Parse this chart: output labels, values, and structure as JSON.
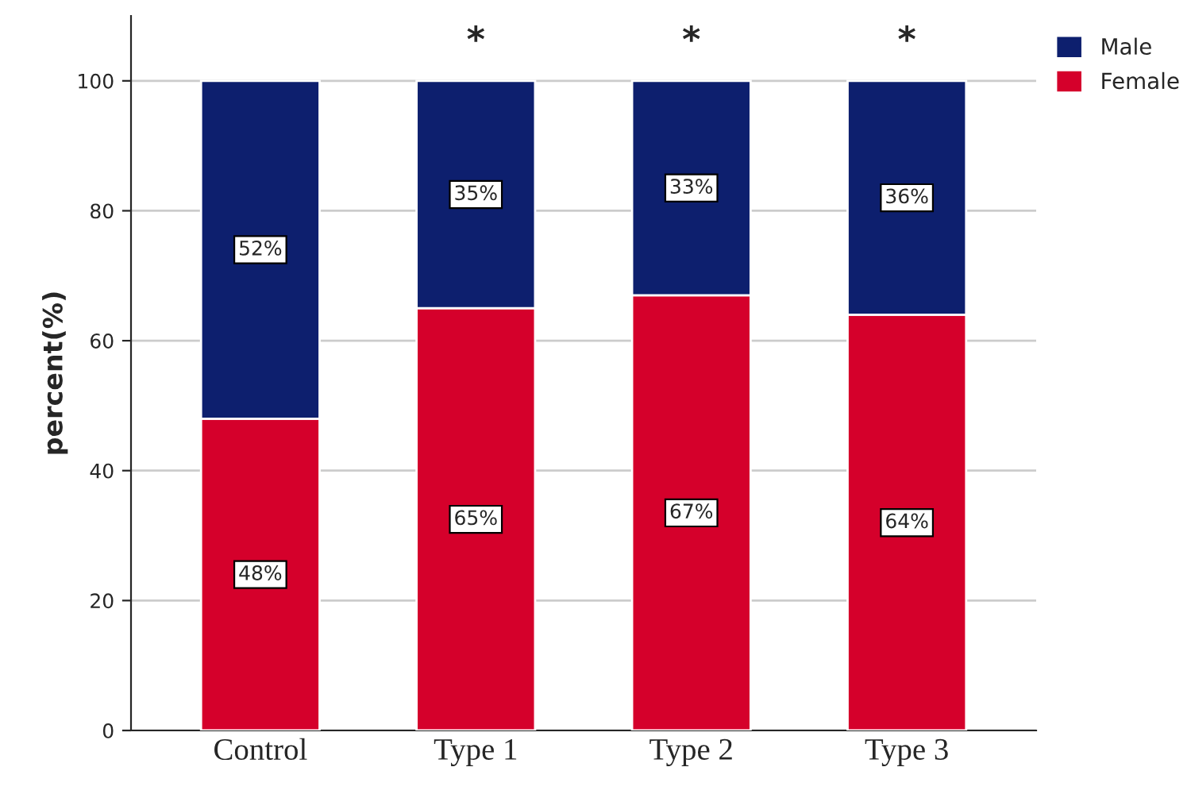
{
  "chart_data": {
    "type": "bar",
    "stacked": true,
    "ylabel": "percent(%)",
    "categories": [
      "Control",
      "Type 1",
      "Type 2",
      "Type 3"
    ],
    "series": [
      {
        "name": "Female",
        "color": "#d5002b",
        "values": [
          48,
          65,
          67,
          64
        ],
        "value_labels": [
          "48%",
          "65%",
          "67%",
          "64%"
        ]
      },
      {
        "name": "Male",
        "color": "#0d1f6e",
        "values": [
          52,
          35,
          33,
          36
        ],
        "value_labels": [
          "52%",
          "35%",
          "33%",
          "36%"
        ]
      }
    ],
    "ylim": [
      0,
      110
    ],
    "yticks": [
      0,
      20,
      40,
      60,
      80,
      100
    ],
    "grid": "y",
    "legend": "top right",
    "annotations": [
      "*",
      "*",
      "*"
    ]
  }
}
